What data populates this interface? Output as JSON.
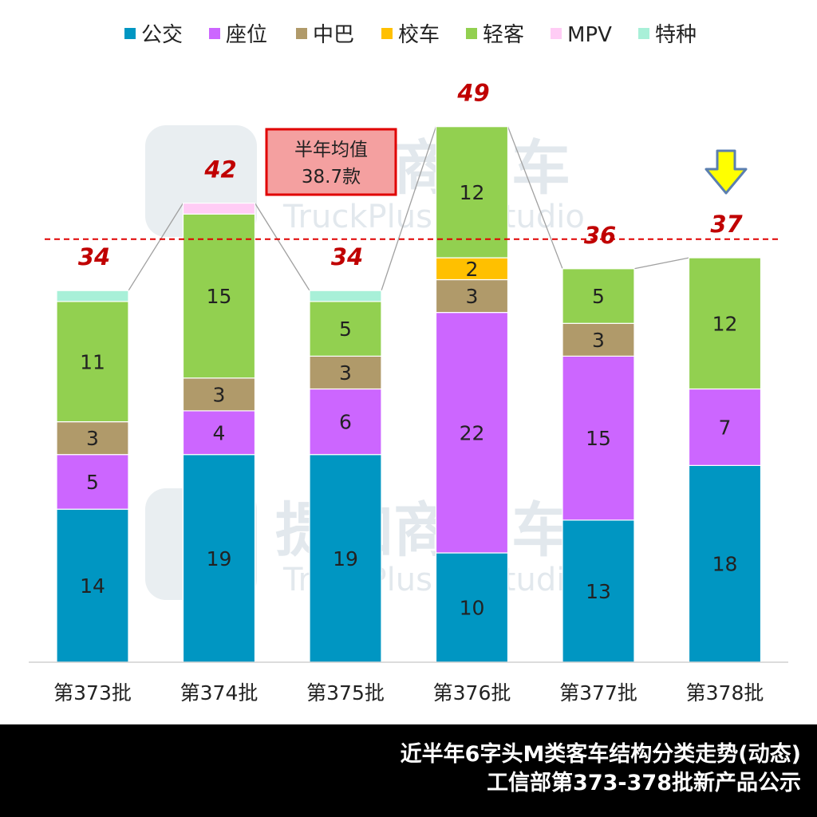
{
  "chart_data": {
    "type": "bar",
    "stacked": true,
    "categories": [
      "第373批",
      "第374批",
      "第375批",
      "第376批",
      "第377批",
      "第378批"
    ],
    "series": [
      {
        "name": "公交",
        "color": "#0096c2",
        "values": [
          14,
          19,
          19,
          10,
          13,
          18
        ]
      },
      {
        "name": "座位",
        "color": "#cc66ff",
        "values": [
          5,
          4,
          6,
          22,
          15,
          7
        ]
      },
      {
        "name": "中巴",
        "color": "#b09a6a",
        "values": [
          3,
          3,
          3,
          3,
          3,
          0
        ]
      },
      {
        "name": "校车",
        "color": "#ffc000",
        "values": [
          0,
          0,
          0,
          2,
          0,
          0
        ]
      },
      {
        "name": "轻客",
        "color": "#92d050",
        "values": [
          11,
          15,
          5,
          12,
          5,
          12
        ]
      },
      {
        "name": "MPV",
        "color": "#ffccf5",
        "values": [
          0,
          1,
          0,
          0,
          0,
          0
        ]
      },
      {
        "name": "特种",
        "color": "#a8f0d8",
        "values": [
          1,
          0,
          1,
          0,
          0,
          0
        ]
      }
    ],
    "segment_labels": [
      [
        14,
        5,
        3,
        null,
        11,
        null,
        null
      ],
      [
        19,
        4,
        3,
        null,
        15,
        null,
        null
      ],
      [
        19,
        6,
        3,
        null,
        5,
        null,
        null
      ],
      [
        10,
        22,
        3,
        2,
        12,
        null,
        null
      ],
      [
        13,
        15,
        3,
        null,
        5,
        null,
        null
      ],
      [
        18,
        7,
        null,
        null,
        12,
        null,
        null
      ]
    ],
    "totals": [
      34,
      42,
      34,
      49,
      36,
      37
    ],
    "average": {
      "value": 38.7,
      "title": "半年均值",
      "text": "38.7款"
    },
    "legend_position": "top",
    "ylim": [
      0,
      51
    ],
    "grid": false,
    "highlight_arrow_category": "第378批"
  },
  "watermark": {
    "main": "提加商用车",
    "sub": "TruckPlus CVstudio"
  },
  "footer": {
    "line1": "近半年6字头M类客车结构分类走势(动态)",
    "line2": "工信部第373-378批新产品公示"
  }
}
